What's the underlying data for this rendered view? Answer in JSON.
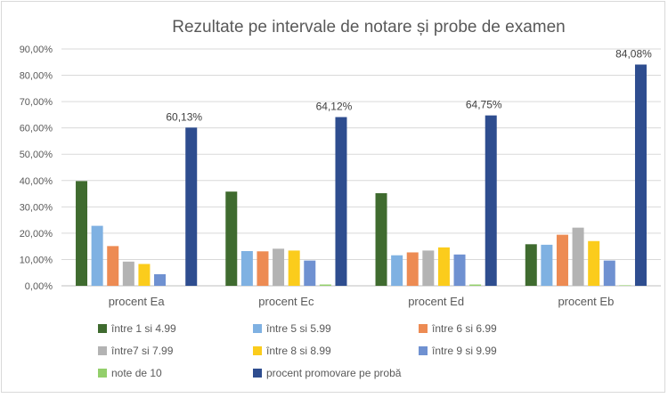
{
  "chart_data": {
    "type": "bar",
    "title": "Rezultate pe intervale de notare și probe de examen",
    "categories": [
      "procent Ea",
      "procent Ec",
      "procent Ed",
      "procent Eb"
    ],
    "ylim": [
      0,
      90
    ],
    "yticks": [
      "0,00%",
      "10,00%",
      "20,00%",
      "30,00%",
      "40,00%",
      "50,00%",
      "60,00%",
      "70,00%",
      "80,00%",
      "90,00%"
    ],
    "grid": true,
    "legend_position": "bottom",
    "series": [
      {
        "name": "între 1 si 4.99",
        "color": "#3f6b2f",
        "values": [
          39.8,
          35.8,
          35.2,
          15.8
        ]
      },
      {
        "name": "între 5 si 5.99",
        "color": "#7fb1e2",
        "values": [
          22.8,
          13.2,
          11.6,
          15.6
        ]
      },
      {
        "name": "între 6 si 6.99",
        "color": "#ed8b53",
        "values": [
          15.1,
          13.1,
          12.7,
          19.4
        ]
      },
      {
        "name": "între7 si 7.99",
        "color": "#b3b3b3",
        "values": [
          9.2,
          14.1,
          13.4,
          22.1
        ]
      },
      {
        "name": "între 8 si 8.99",
        "color": "#fbcc1c",
        "values": [
          8.3,
          13.4,
          14.6,
          17.0
        ]
      },
      {
        "name": "între 9 si 9.99",
        "color": "#6f91d1",
        "values": [
          4.4,
          9.6,
          11.9,
          9.6
        ]
      },
      {
        "name": "note de 10",
        "color": "#93cf6b",
        "values": [
          0.0,
          0.5,
          0.5,
          0.2
        ]
      },
      {
        "name": "procent promovare pe probă",
        "color": "#2e4d8f",
        "values": [
          60.13,
          64.12,
          64.75,
          84.08
        ]
      }
    ],
    "data_labels": [
      "60,13%",
      "64,12%",
      "64,75%",
      "84,08%"
    ]
  }
}
